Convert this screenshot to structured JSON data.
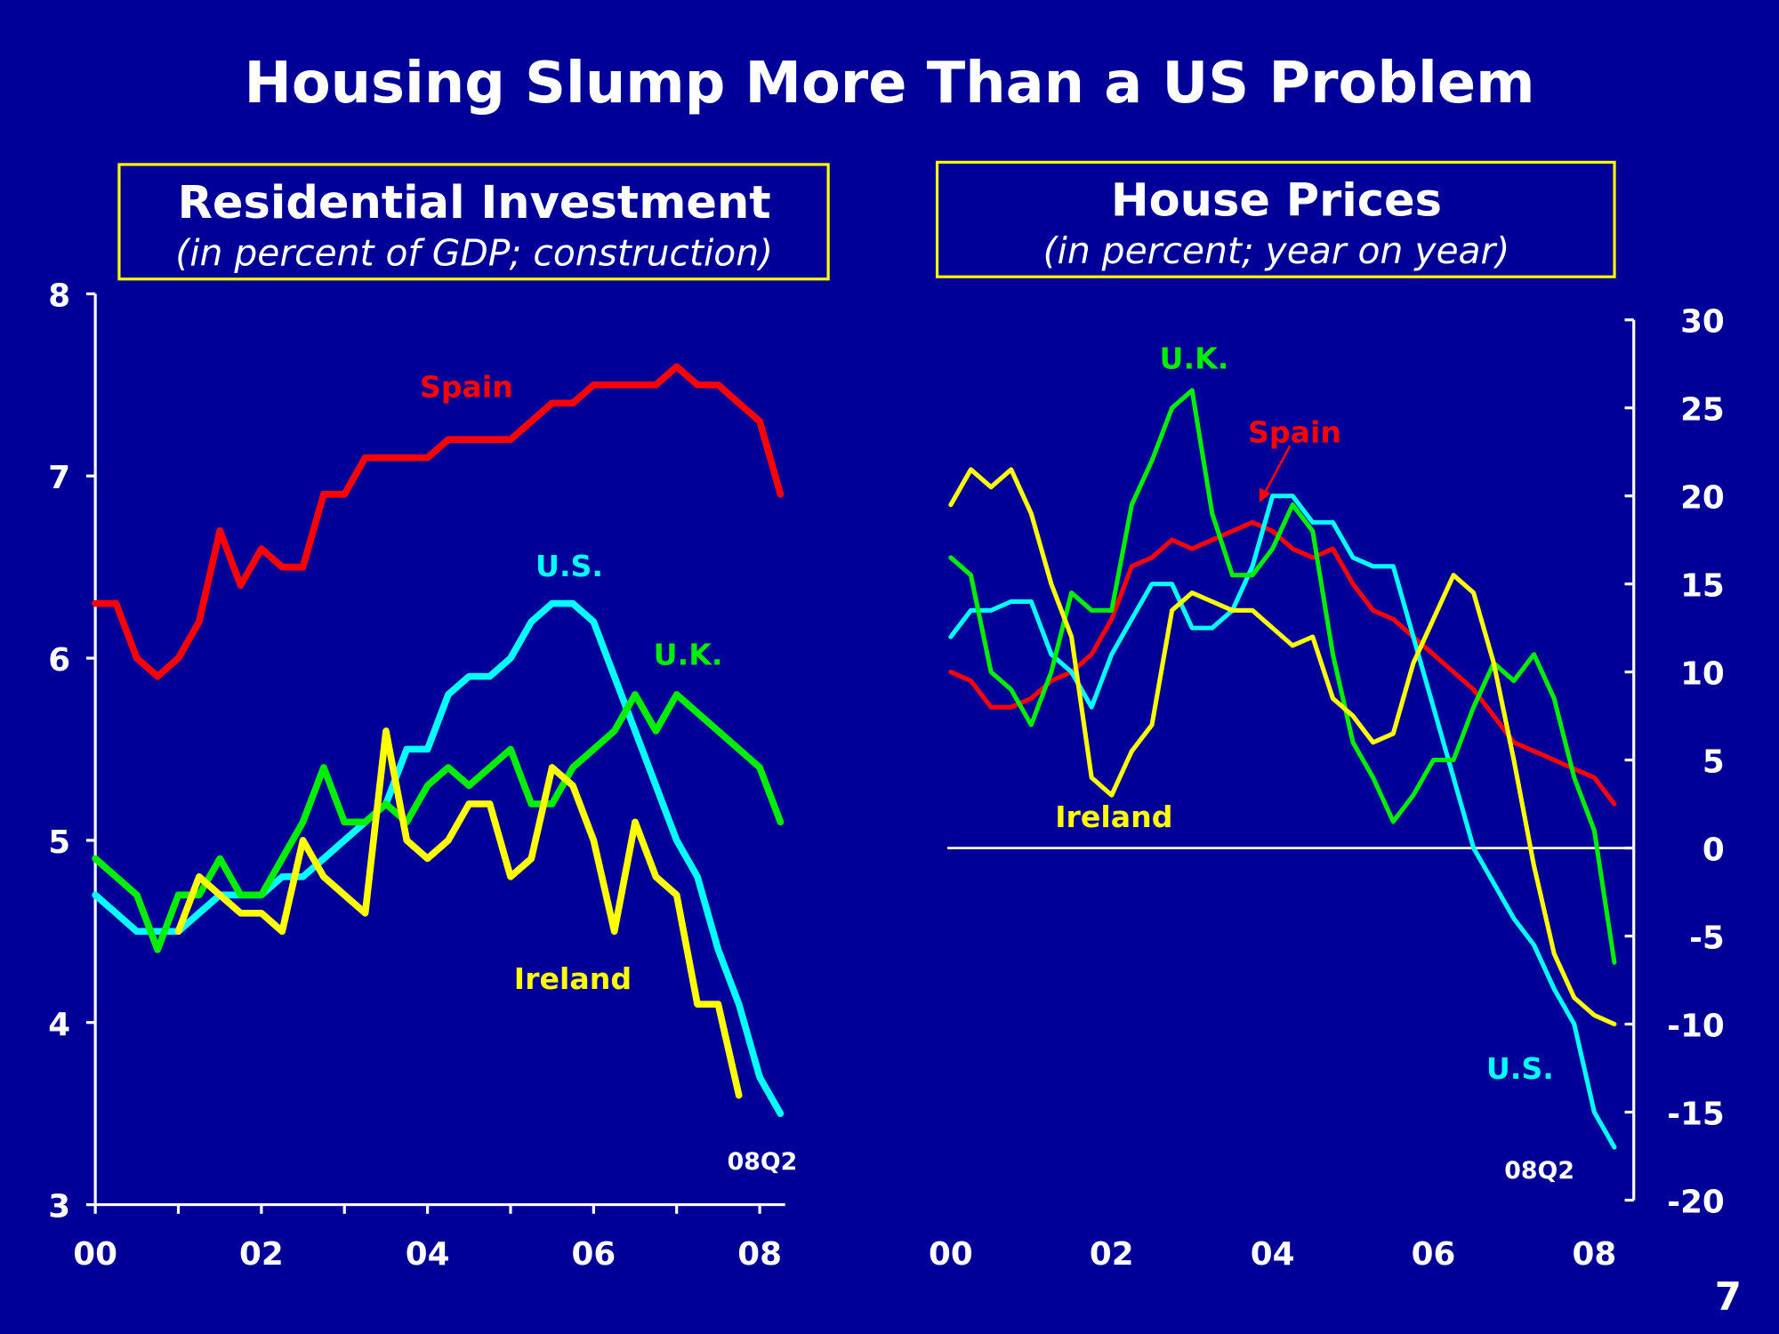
{
  "title": "Housing Slump More Than a US Problem",
  "page_number": "7",
  "colors": {
    "background": "#000099",
    "Spain": "#ff0000",
    "U.S.": "#00ffff",
    "U.K.": "#00ee00",
    "Ireland": "#ffff00",
    "box_border": "#ffff00"
  },
  "chart_data": [
    {
      "type": "line",
      "title": "Residential Investment",
      "subtitle": "(in percent of GDP; construction)",
      "x_tick_labels": [
        "00",
        "02",
        "04",
        "06",
        "08"
      ],
      "y_tick_labels": [
        "3",
        "4",
        "5",
        "6",
        "7",
        "8"
      ],
      "ylim": [
        3,
        8
      ],
      "x_range": [
        "2000Q1",
        "2008Q2"
      ],
      "end_label": "08Q2",
      "grid": false,
      "series": [
        {
          "name": "Spain",
          "start": "2000Q1",
          "values": [
            6.3,
            6.3,
            6.0,
            5.9,
            6.0,
            6.2,
            6.7,
            6.4,
            6.6,
            6.5,
            6.5,
            6.9,
            6.9,
            7.1,
            7.1,
            7.1,
            7.1,
            7.2,
            7.2,
            7.2,
            7.2,
            7.3,
            7.4,
            7.4,
            7.5,
            7.5,
            7.5,
            7.5,
            7.6,
            7.5,
            7.5,
            7.4,
            7.3,
            6.9
          ]
        },
        {
          "name": "U.S.",
          "start": "2000Q1",
          "values": [
            4.7,
            4.6,
            4.5,
            4.5,
            4.5,
            4.6,
            4.7,
            4.7,
            4.7,
            4.8,
            4.8,
            4.9,
            5.0,
            5.1,
            5.2,
            5.5,
            5.5,
            5.8,
            5.9,
            5.9,
            6.0,
            6.2,
            6.3,
            6.3,
            6.2,
            5.9,
            5.6,
            5.3,
            5.0,
            4.8,
            4.4,
            4.1,
            3.7,
            3.5
          ]
        },
        {
          "name": "U.K.",
          "start": "2000Q1",
          "values": [
            4.9,
            4.8,
            4.7,
            4.4,
            4.7,
            4.7,
            4.9,
            4.7,
            4.7,
            4.9,
            5.1,
            5.4,
            5.1,
            5.1,
            5.2,
            5.1,
            5.3,
            5.4,
            5.3,
            5.4,
            5.5,
            5.2,
            5.2,
            5.4,
            5.5,
            5.6,
            5.8,
            5.6,
            5.8,
            5.7,
            5.6,
            5.5,
            5.4,
            5.1
          ]
        },
        {
          "name": "Ireland",
          "start": "2001Q1",
          "values": [
            4.5,
            4.8,
            4.7,
            4.6,
            4.6,
            4.5,
            5.0,
            4.8,
            4.7,
            4.6,
            5.6,
            5.0,
            4.9,
            5.0,
            5.2,
            5.2,
            4.8,
            4.9,
            5.4,
            5.3,
            5.0,
            4.5,
            5.1,
            4.8,
            4.7,
            4.1,
            4.1,
            3.6
          ]
        }
      ]
    },
    {
      "type": "line",
      "title": "House Prices",
      "subtitle": "(in percent; year on year)",
      "x_tick_labels": [
        "00",
        "02",
        "04",
        "06",
        "08"
      ],
      "y_tick_labels": [
        "-20",
        "-15",
        "-10",
        "-5",
        "0",
        "5",
        "10",
        "15",
        "20",
        "25",
        "30"
      ],
      "ylim": [
        -20,
        30
      ],
      "x_range": [
        "2000Q1",
        "2008Q2"
      ],
      "end_label": "08Q2",
      "zero_line": true,
      "y_axis_side": "right",
      "grid": false,
      "series": [
        {
          "name": "Spain",
          "start": "2000Q1",
          "values": [
            10,
            9.5,
            8,
            8,
            8.5,
            9.5,
            10,
            11,
            13,
            16,
            16.5,
            17.5,
            17,
            17.5,
            18,
            18.5,
            18,
            17,
            16.5,
            17,
            15,
            13.5,
            13,
            12,
            11,
            10,
            9,
            7.5,
            6,
            5.5,
            5,
            4.5,
            4,
            2.5
          ]
        },
        {
          "name": "U.S.",
          "start": "2000Q1",
          "values": [
            12,
            13.5,
            13.5,
            14,
            14,
            11,
            10,
            8,
            11,
            13,
            15,
            15,
            12.5,
            12.5,
            13.5,
            16,
            20,
            20,
            18.5,
            18.5,
            16.5,
            16,
            16,
            12,
            8,
            4,
            0,
            -2,
            -4,
            -5.5,
            -8,
            -10,
            -15,
            -17
          ]
        },
        {
          "name": "U.K.",
          "start": "2000Q1",
          "values": [
            16.5,
            15.5,
            10,
            9,
            7,
            10,
            14.5,
            13.5,
            13.5,
            19.5,
            22,
            25,
            26,
            19,
            15.5,
            15.5,
            17,
            19.5,
            18,
            11,
            6,
            4,
            1.5,
            3,
            5,
            5,
            8,
            10.5,
            9.5,
            11,
            8.5,
            4,
            1,
            -6.5
          ]
        },
        {
          "name": "Ireland",
          "start": "2000Q1",
          "values": [
            19.5,
            21.5,
            20.5,
            21.5,
            19,
            15,
            12,
            4,
            3,
            5.5,
            7,
            13.5,
            14.5,
            14,
            13.5,
            13.5,
            12.5,
            11.5,
            12,
            8.5,
            7.5,
            6,
            6.5,
            10.5,
            13,
            15.5,
            14.5,
            10.5,
            5,
            -1,
            -6,
            -8.5,
            -9.5,
            -10
          ]
        }
      ]
    }
  ]
}
